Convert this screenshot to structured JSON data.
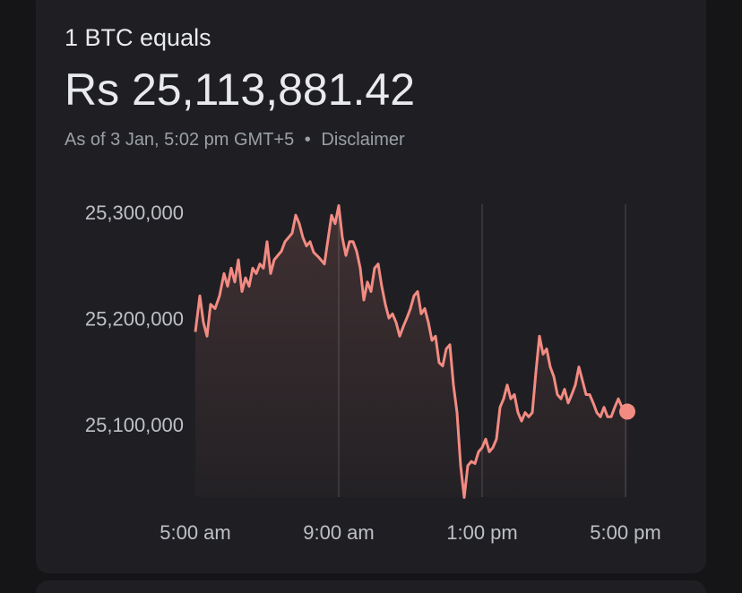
{
  "header": {
    "title": "1 BTC equals",
    "price": "Rs 25,113,881.42",
    "as_of": "As of 3 Jan, 5:02 pm GMT+5",
    "separator": "•",
    "disclaimer": "Disclaimer"
  },
  "chart_data": {
    "type": "line",
    "color": "#f28b82",
    "x": [
      5.0,
      5.125,
      5.225,
      5.325,
      5.425,
      5.55,
      5.675,
      5.8,
      5.9,
      6.0,
      6.1,
      6.2,
      6.3,
      6.4,
      6.5,
      6.6,
      6.7,
      6.8,
      6.9,
      7.0,
      7.1,
      7.2,
      7.3,
      7.4,
      7.5,
      7.6,
      7.7,
      7.8,
      7.9,
      8.0,
      8.1,
      8.2,
      8.3,
      8.45,
      8.6,
      8.7,
      8.8,
      8.9,
      9.0,
      9.1,
      9.2,
      9.3,
      9.4,
      9.5,
      9.6,
      9.7,
      9.8,
      9.9,
      10.0,
      10.1,
      10.2,
      10.3,
      10.4,
      10.5,
      10.6,
      10.7,
      10.8,
      10.9,
      11.0,
      11.1,
      11.2,
      11.3,
      11.4,
      11.5,
      11.6,
      11.7,
      11.8,
      11.9,
      12.0,
      12.1,
      12.2,
      12.3,
      12.4,
      12.5,
      12.6,
      12.7,
      12.8,
      12.9,
      13.0,
      13.1,
      13.2,
      13.3,
      13.4,
      13.5,
      13.6,
      13.7,
      13.8,
      13.9,
      14.0,
      14.1,
      14.2,
      14.3,
      14.4,
      14.5,
      14.6,
      14.7,
      14.8,
      14.9,
      15.0,
      15.1,
      15.2,
      15.3,
      15.4,
      15.5,
      15.6,
      15.7,
      15.8,
      15.9,
      16.0,
      16.1,
      16.2,
      16.3,
      16.4,
      16.5,
      16.6,
      16.7,
      16.8,
      16.9,
      17.05
    ],
    "values": [
      25189000,
      25223000,
      25198000,
      25185000,
      25215000,
      25211000,
      25223000,
      25244000,
      25232000,
      25249000,
      25236000,
      25257000,
      25227000,
      25240000,
      25232000,
      25249000,
      25244000,
      25253000,
      25249000,
      25274000,
      25244000,
      25257000,
      25261000,
      25265000,
      25274000,
      25278000,
      25282000,
      25299000,
      25291000,
      25278000,
      25270000,
      25274000,
      25264000,
      25259000,
      25253000,
      25276000,
      25299000,
      25291000,
      25308000,
      25278000,
      25261000,
      25274000,
      25274000,
      25265000,
      25249000,
      25219000,
      25236000,
      25227000,
      25249000,
      25253000,
      25232000,
      25215000,
      25202000,
      25206000,
      25198000,
      25185000,
      25194000,
      25202000,
      25211000,
      25223000,
      25227000,
      25206000,
      25211000,
      25198000,
      25181000,
      25185000,
      25160000,
      25157000,
      25173000,
      25177000,
      25139000,
      25113000,
      25063000,
      25033000,
      25063000,
      25067000,
      25065000,
      25076000,
      25080000,
      25088000,
      25076000,
      25080000,
      25088000,
      25118000,
      25126000,
      25139000,
      25126000,
      25130000,
      25113000,
      25105000,
      25113000,
      25109000,
      25113000,
      25151000,
      25185000,
      25168000,
      25173000,
      25156000,
      25147000,
      25130000,
      25126000,
      25135000,
      25122000,
      25130000,
      25139000,
      25156000,
      25143000,
      25130000,
      25130000,
      25122000,
      25113000,
      25109000,
      25118000,
      25109000,
      25109000,
      25118000,
      25126000,
      25118000,
      25113881.42
    ],
    "xlim": [
      5,
      17.05
    ],
    "xticks": [
      {
        "value": 5,
        "label": "5:00 am"
      },
      {
        "value": 9,
        "label": "9:00 am"
      },
      {
        "value": 13,
        "label": "1:00 pm"
      },
      {
        "value": 17,
        "label": "5:00 pm"
      }
    ],
    "ylim": [
      25030000,
      25310000
    ],
    "yticks": [
      {
        "value": 25100000,
        "label": "25,100,000"
      },
      {
        "value": 25200000,
        "label": "25,200,000"
      },
      {
        "value": 25300000,
        "label": "25,300,000"
      }
    ],
    "grid": true
  }
}
